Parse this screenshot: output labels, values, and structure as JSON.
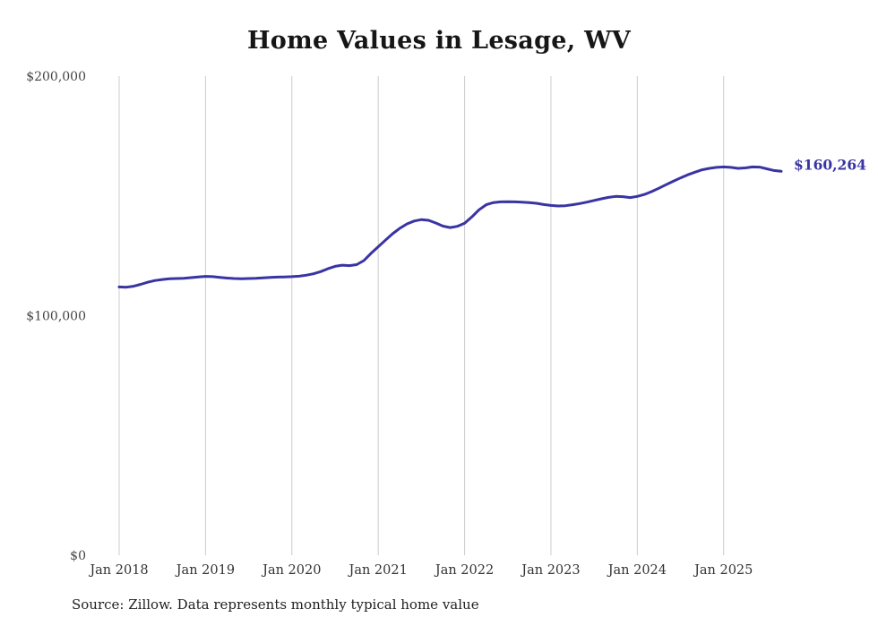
{
  "chart_data": {
    "type": "line",
    "title": "Home Values in Lesage, WV",
    "source": "Source: Zillow. Data represents monthly typical home value",
    "series_name": "Monthly typical home value",
    "unit": "USD",
    "ylim": [
      0,
      200000
    ],
    "grid": "vertical-only",
    "legend": "none",
    "line_color": "#3a34a3",
    "grid_color": "#cccccc",
    "end_label": "$160,264",
    "end_value": 160264,
    "y_ticks": [
      {
        "value": 0,
        "label": "$0"
      },
      {
        "value": 100000,
        "label": "$100,000"
      },
      {
        "value": 200000,
        "label": "$200,000"
      }
    ],
    "x_ticks": [
      {
        "month_index": 0,
        "label": "Jan 2018"
      },
      {
        "month_index": 12,
        "label": "Jan 2019"
      },
      {
        "month_index": 24,
        "label": "Jan 2020"
      },
      {
        "month_index": 36,
        "label": "Jan 2021"
      },
      {
        "month_index": 48,
        "label": "Jan 2022"
      },
      {
        "month_index": 60,
        "label": "Jan 2023"
      },
      {
        "month_index": 72,
        "label": "Jan 2024"
      },
      {
        "month_index": 84,
        "label": "Jan 2025"
      }
    ],
    "months": [
      "2018-01",
      "2018-02",
      "2018-03",
      "2018-04",
      "2018-05",
      "2018-06",
      "2018-07",
      "2018-08",
      "2018-09",
      "2018-10",
      "2018-11",
      "2018-12",
      "2019-01",
      "2019-02",
      "2019-03",
      "2019-04",
      "2019-05",
      "2019-06",
      "2019-07",
      "2019-08",
      "2019-09",
      "2019-10",
      "2019-11",
      "2019-12",
      "2020-01",
      "2020-02",
      "2020-03",
      "2020-04",
      "2020-05",
      "2020-06",
      "2020-07",
      "2020-08",
      "2020-09",
      "2020-10",
      "2020-11",
      "2020-12",
      "2021-01",
      "2021-02",
      "2021-03",
      "2021-04",
      "2021-05",
      "2021-06",
      "2021-07",
      "2021-08",
      "2021-09",
      "2021-10",
      "2021-11",
      "2021-12",
      "2022-01",
      "2022-02",
      "2022-03",
      "2022-04",
      "2022-05",
      "2022-06",
      "2022-07",
      "2022-08",
      "2022-09",
      "2022-10",
      "2022-11",
      "2022-12",
      "2023-01",
      "2023-02",
      "2023-03",
      "2023-04",
      "2023-05",
      "2023-06",
      "2023-07",
      "2023-08",
      "2023-09",
      "2023-10",
      "2023-11",
      "2023-12",
      "2024-01",
      "2024-02",
      "2024-03",
      "2024-04",
      "2024-05",
      "2024-06",
      "2024-07",
      "2024-08",
      "2024-09",
      "2024-10",
      "2024-11",
      "2024-12",
      "2025-01",
      "2025-02",
      "2025-03",
      "2025-04",
      "2025-05",
      "2025-06",
      "2025-07",
      "2025-08",
      "2025-09"
    ],
    "values": [
      112000,
      111900,
      112300,
      113100,
      114000,
      114700,
      115100,
      115400,
      115500,
      115600,
      115900,
      116200,
      116400,
      116300,
      116000,
      115700,
      115500,
      115400,
      115500,
      115600,
      115800,
      116000,
      116100,
      116200,
      116300,
      116500,
      116900,
      117500,
      118400,
      119600,
      120600,
      121100,
      120900,
      121300,
      123000,
      126000,
      128800,
      131500,
      134200,
      136500,
      138300,
      139500,
      140100,
      139800,
      138700,
      137400,
      136800,
      137300,
      138600,
      141200,
      144200,
      146300,
      147200,
      147500,
      147600,
      147500,
      147400,
      147200,
      146900,
      146400,
      146000,
      145800,
      145900,
      146300,
      146800,
      147400,
      148100,
      148800,
      149400,
      149800,
      149700,
      149300,
      149800,
      150600,
      151800,
      153200,
      154700,
      156100,
      157500,
      158800,
      159900,
      160900,
      161500,
      161900,
      162100,
      161900,
      161500,
      161700,
      162100,
      162000,
      161300,
      160600,
      160264
    ]
  }
}
